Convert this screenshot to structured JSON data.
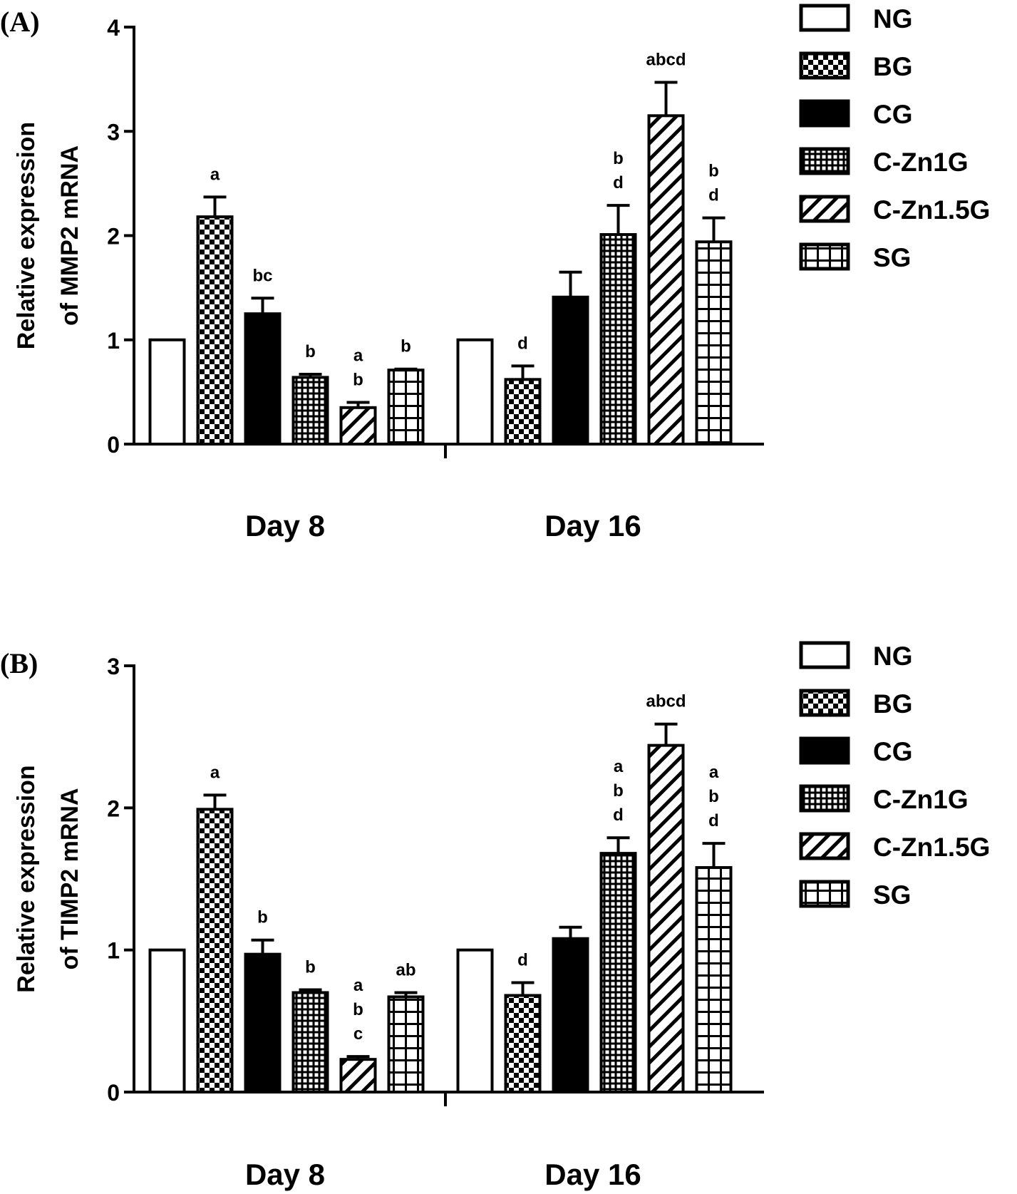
{
  "colors": {
    "ink": "#000000",
    "paper": "#ffffff"
  },
  "legend": [
    {
      "name": "NG",
      "pattern": "none"
    },
    {
      "name": "BG",
      "pattern": "checker"
    },
    {
      "name": "CG",
      "pattern": "solid"
    },
    {
      "name": "C-Zn1G",
      "pattern": "finegrid"
    },
    {
      "name": "C-Zn1.5G",
      "pattern": "diagonal"
    },
    {
      "name": "SG",
      "pattern": "coarsegrid"
    }
  ],
  "chart_data": [
    {
      "type": "bar",
      "panel_label": "(A)",
      "ylabel_lines": [
        "Relative expression",
        "of MMP2 mRNA"
      ],
      "categories": [
        "Day 8",
        "Day 16"
      ],
      "ylim": [
        0,
        4
      ],
      "yticks": [
        "0",
        "1",
        "2",
        "3",
        "4"
      ],
      "legend_position": "right",
      "series": [
        {
          "name": "NG",
          "values": [
            1.0,
            1.0
          ],
          "errors": [
            0,
            0
          ],
          "sig": [
            "",
            ""
          ]
        },
        {
          "name": "BG",
          "values": [
            2.18,
            0.62
          ],
          "errors": [
            0.19,
            0.13
          ],
          "sig": [
            "a",
            "d"
          ]
        },
        {
          "name": "CG",
          "values": [
            1.25,
            1.41
          ],
          "errors": [
            0.15,
            0.24
          ],
          "sig": [
            "bc",
            ""
          ]
        },
        {
          "name": "C-Zn1G",
          "values": [
            0.64,
            2.01
          ],
          "errors": [
            0.03,
            0.28
          ],
          "sig": [
            "b",
            "b\nd"
          ]
        },
        {
          "name": "C-Zn1.5G",
          "values": [
            0.35,
            3.15
          ],
          "errors": [
            0.05,
            0.32
          ],
          "sig": [
            "a\nb",
            "abcd"
          ]
        },
        {
          "name": "SG",
          "values": [
            0.71,
            1.94
          ],
          "errors": [
            0.01,
            0.23
          ],
          "sig": [
            "b",
            "b\nd"
          ]
        }
      ]
    },
    {
      "type": "bar",
      "panel_label": "(B)",
      "ylabel_lines": [
        "Relative expression",
        "of TIMP2 mRNA"
      ],
      "categories": [
        "Day 8",
        "Day 16"
      ],
      "ylim": [
        0,
        3
      ],
      "yticks": [
        "0",
        "1",
        "2",
        "3"
      ],
      "legend_position": "right",
      "series": [
        {
          "name": "NG",
          "values": [
            1.0,
            1.0
          ],
          "errors": [
            0,
            0
          ],
          "sig": [
            "",
            ""
          ]
        },
        {
          "name": "BG",
          "values": [
            1.99,
            0.68
          ],
          "errors": [
            0.1,
            0.09
          ],
          "sig": [
            "a",
            "d"
          ]
        },
        {
          "name": "CG",
          "values": [
            0.97,
            1.08
          ],
          "errors": [
            0.1,
            0.08
          ],
          "sig": [
            "b",
            ""
          ]
        },
        {
          "name": "C-Zn1G",
          "values": [
            0.7,
            1.68
          ],
          "errors": [
            0.02,
            0.11
          ],
          "sig": [
            "b",
            "a\nb\nd"
          ]
        },
        {
          "name": "C-Zn1.5G",
          "values": [
            0.23,
            2.44
          ],
          "errors": [
            0.02,
            0.15
          ],
          "sig": [
            "a\nb\nc",
            "abcd"
          ]
        },
        {
          "name": "SG",
          "values": [
            0.67,
            1.58
          ],
          "errors": [
            0.03,
            0.17
          ],
          "sig": [
            "ab",
            "a\nb\nd"
          ]
        }
      ]
    }
  ]
}
